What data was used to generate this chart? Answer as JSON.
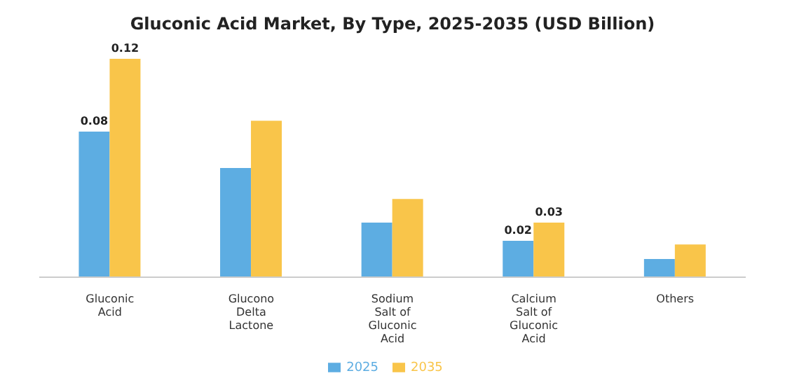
{
  "chart_data": {
    "type": "bar",
    "title": "Gluconic Acid Market, By Type, 2025-2035 (USD Billion)",
    "categories": [
      "Gluconic Acid",
      "Glucono Delta Lactone",
      "Sodium Salt of Gluconic Acid",
      "Calcium Salt of Gluconic Acid",
      "Others"
    ],
    "series": [
      {
        "name": "2025",
        "color": "#5dade2",
        "values": [
          0.08,
          0.06,
          0.03,
          0.02,
          0.01
        ],
        "value_labels": [
          "0.08",
          null,
          null,
          "0.02",
          null
        ]
      },
      {
        "name": "2035",
        "color": "#f9c54a",
        "values": [
          0.12,
          0.086,
          0.043,
          0.03,
          0.018
        ],
        "value_labels": [
          "0.12",
          null,
          null,
          "0.03",
          null
        ]
      }
    ],
    "legend": "bottom"
  }
}
